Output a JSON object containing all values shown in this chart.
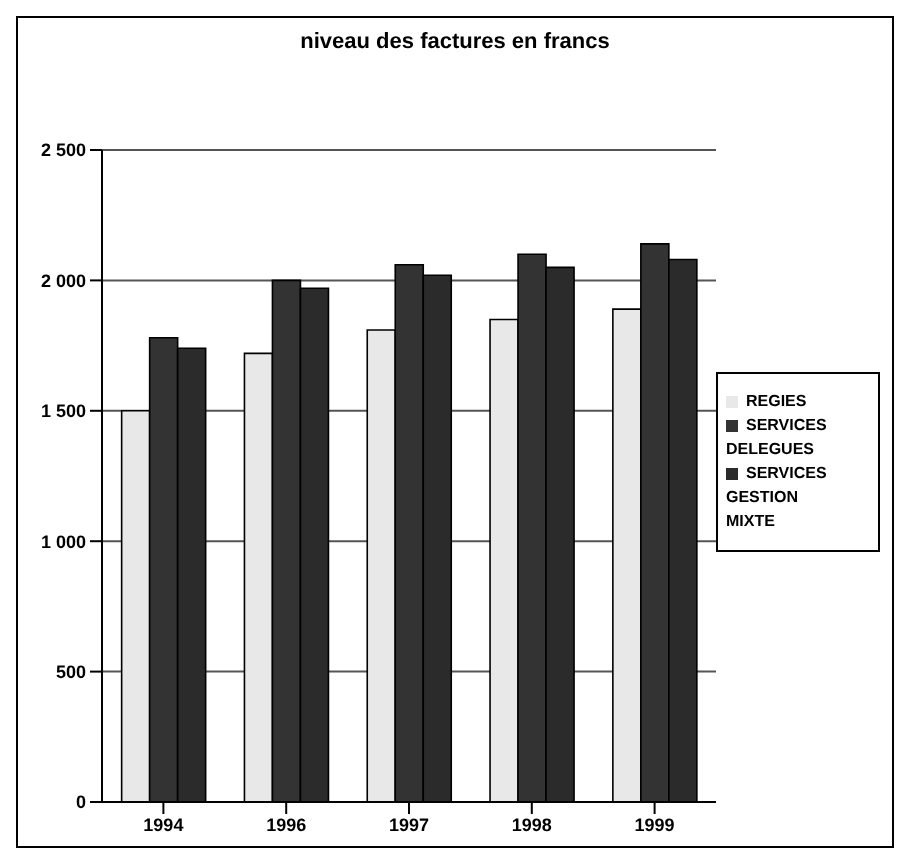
{
  "chart_data": {
    "type": "bar",
    "title": "niveau des factures en francs",
    "categories": [
      "1994",
      "1996",
      "1997",
      "1998",
      "1999"
    ],
    "series": [
      {
        "name": "REGIES",
        "color": "#e8e8e8",
        "values": [
          1500,
          1720,
          1810,
          1850,
          1890
        ]
      },
      {
        "name": "SERVICES DELEGUES",
        "color": "#333333",
        "values": [
          1780,
          2000,
          2060,
          2100,
          2140
        ]
      },
      {
        "name": "SERVICES GESTION MIXTE",
        "color": "#2b2b2b",
        "values": [
          1740,
          1970,
          2020,
          2050,
          2080
        ]
      }
    ],
    "ylim": [
      0,
      2500
    ],
    "yticks": [
      {
        "value": 0,
        "label": "0"
      },
      {
        "value": 500,
        "label": "500"
      },
      {
        "value": 1000,
        "label": "1 000"
      },
      {
        "value": 1500,
        "label": "1 500"
      },
      {
        "value": 2000,
        "label": "2 000"
      },
      {
        "value": 2500,
        "label": "2 500"
      }
    ],
    "grid": "y",
    "legend": "right"
  }
}
